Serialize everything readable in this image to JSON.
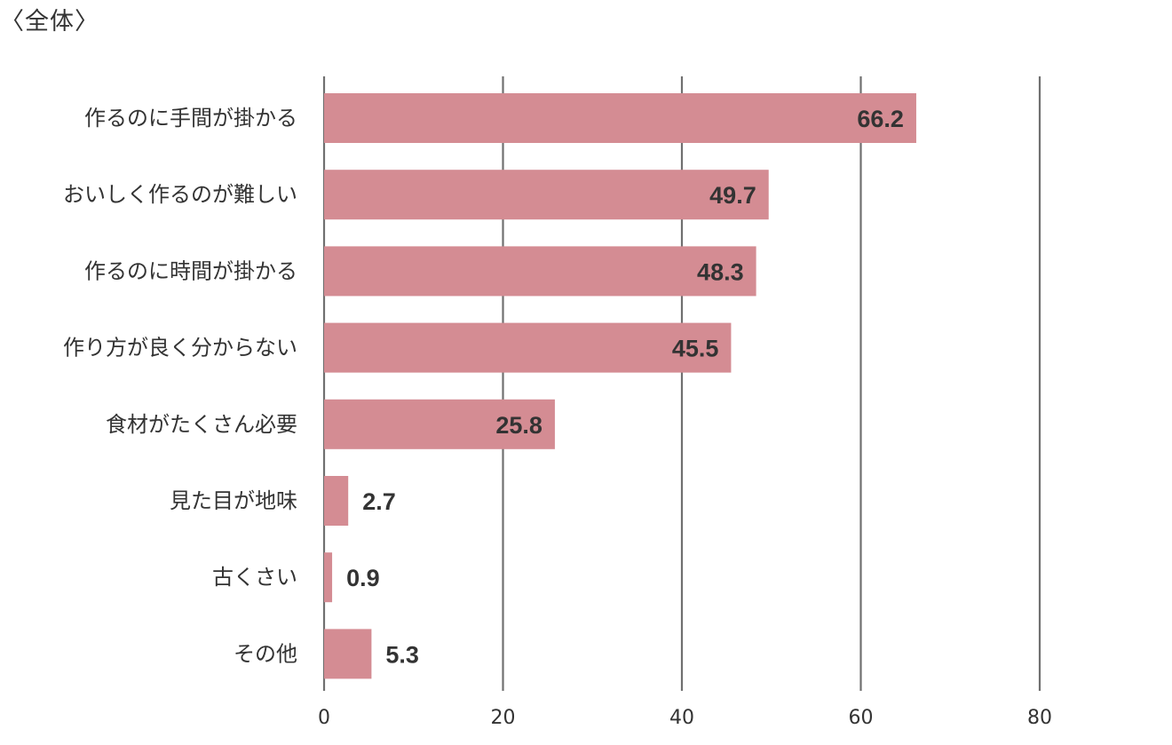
{
  "chart_data": {
    "type": "bar",
    "orientation": "horizontal",
    "title": "〈全体〉",
    "categories": [
      "作るのに手間が掛かる",
      "おいしく作るのが難しい",
      "作るのに時間が掛かる",
      "作り方が良く分からない",
      "食材がたくさん必要",
      "見た目が地味",
      "古くさい",
      "その他"
    ],
    "values": [
      66.2,
      49.7,
      48.3,
      45.5,
      25.8,
      2.7,
      0.9,
      5.3
    ],
    "value_labels": [
      "66.2",
      "49.7",
      "48.3",
      "45.5",
      "25.8",
      "2.7",
      "0.9",
      "5.3"
    ],
    "xlim": [
      0,
      80
    ],
    "x_ticks": [
      0,
      20,
      40,
      60,
      80
    ],
    "x_tick_labels": [
      "0",
      "20",
      "40",
      "60",
      "80"
    ],
    "grid": true,
    "bar_color": "#d48c93",
    "gridline_color": "#707070"
  }
}
